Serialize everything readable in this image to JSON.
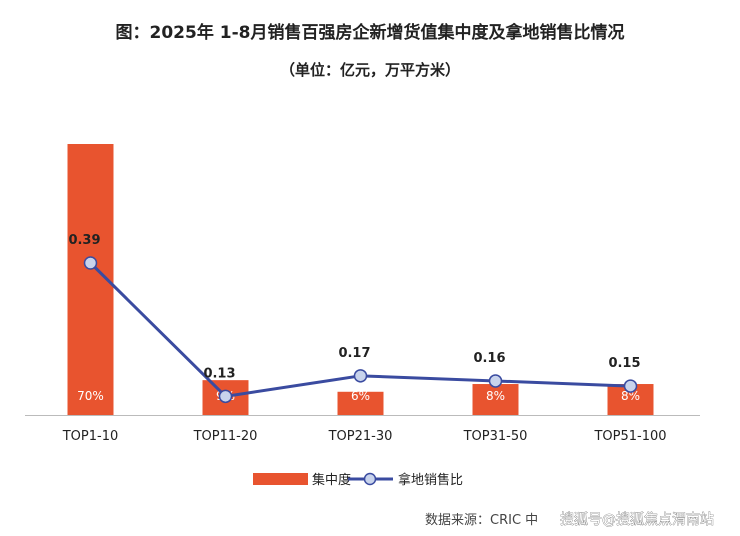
{
  "colors": {
    "bar": "#e8542f",
    "line": "#3a4ba0",
    "marker_fill": "#c8d3ec",
    "axis": "#bbbbbb"
  },
  "chart_data": {
    "type": "bar+line",
    "title": "图：2025年 1-8月销售百强房企新增货值集中度及拿地销售比情况",
    "subtitle": "（单位：亿元，万平方米）",
    "categories": [
      "TOP1-10",
      "TOP11-20",
      "TOP21-30",
      "TOP31-50",
      "TOP51-100"
    ],
    "series": [
      {
        "name": "集中度",
        "type": "bar",
        "values": [
          70,
          9,
          6,
          8,
          8
        ],
        "labels": [
          "70%",
          "9%",
          "6%",
          "8%",
          "8%"
        ]
      },
      {
        "name": "拿地销售比",
        "type": "line",
        "values": [
          0.39,
          0.13,
          0.17,
          0.16,
          0.15
        ],
        "labels": [
          "0.39",
          "0.13",
          "0.17",
          "0.16",
          "0.15"
        ]
      }
    ],
    "legend_position": "bottom",
    "grid": false
  },
  "source": "数据来源：CRIC 中",
  "watermark": "搜狐号@搜狐焦点渭南站"
}
